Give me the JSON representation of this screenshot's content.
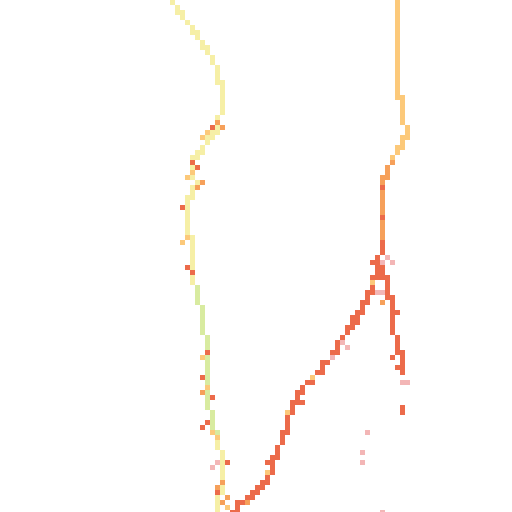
{
  "map": {
    "style": "pixelated heat-colored track overlay on blank background",
    "background_color": "#ffffff",
    "palette": {
      "pale_yellow": "#f6efa6",
      "pale_green": "#d8eba0",
      "light_orange": "#fcc97a",
      "orange": "#f6a05a",
      "red_orange": "#ec6b4a",
      "pink": "#f3b6b6"
    },
    "tracks": [
      {
        "name": "left-track",
        "colors": [
          "pale_yellow",
          "pale_green",
          "light_orange",
          "red_orange"
        ]
      },
      {
        "name": "right-track",
        "colors": [
          "light_orange",
          "orange",
          "red_orange",
          "pink"
        ]
      }
    ]
  }
}
